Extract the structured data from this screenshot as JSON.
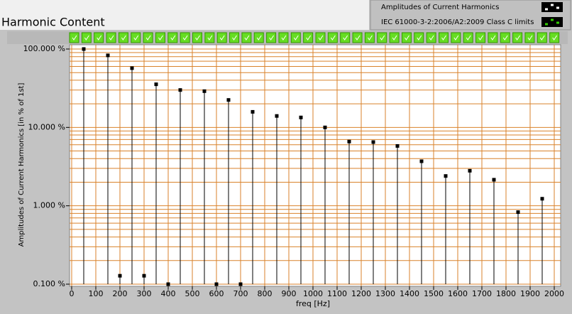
{
  "chart_data": {
    "type": "stem",
    "title": "Harmonic Content",
    "xlabel": "freq [Hz]",
    "ylabel": "Amplitudes of Current Harmonics [in % of 1st]",
    "x": [
      50,
      150,
      200,
      250,
      300,
      350,
      400,
      450,
      550,
      600,
      650,
      700,
      750,
      850,
      950,
      1050,
      1150,
      1250,
      1350,
      1450,
      1550,
      1650,
      1750,
      1850,
      1950
    ],
    "series": [
      {
        "name": "Amplitudes of Current Harmonics",
        "color": "#000000",
        "values": [
          100,
          83,
          0.128,
          57,
          0.128,
          35.5,
          0.1,
          30,
          29,
          0.1,
          22.4,
          0.1,
          15.8,
          14,
          13.4,
          10,
          6.6,
          6.5,
          5.8,
          3.7,
          2.4,
          2.8,
          2.15,
          0.83,
          1.23
        ]
      },
      {
        "name": "IEC 61000-3-2:2006/A2:2009 Class C limits",
        "color": "#33cc00"
      }
    ],
    "xlim": [
      0,
      2000
    ],
    "xticks": [
      0,
      100,
      200,
      300,
      400,
      500,
      600,
      700,
      800,
      900,
      1000,
      1100,
      1200,
      1300,
      1400,
      1500,
      1600,
      1700,
      1800,
      1900,
      2000
    ],
    "ylim": [
      0.1,
      100
    ],
    "yticks": [
      {
        "value": 0.1,
        "label": "0.100 %"
      },
      {
        "value": 1,
        "label": "1.000 %"
      },
      {
        "value": 10,
        "label": "10.000 %"
      },
      {
        "value": 100,
        "label": "100.000 %"
      }
    ],
    "yminor": [
      0.2,
      0.3,
      0.4,
      0.5,
      0.6,
      0.7,
      0.8,
      0.9,
      2,
      3,
      4,
      5,
      6,
      7,
      8,
      9,
      20,
      30,
      40,
      50,
      60,
      70,
      80,
      90
    ],
    "ylog": true,
    "grid": true,
    "grid_color": "#d9822b",
    "legend": "top-right"
  }
}
